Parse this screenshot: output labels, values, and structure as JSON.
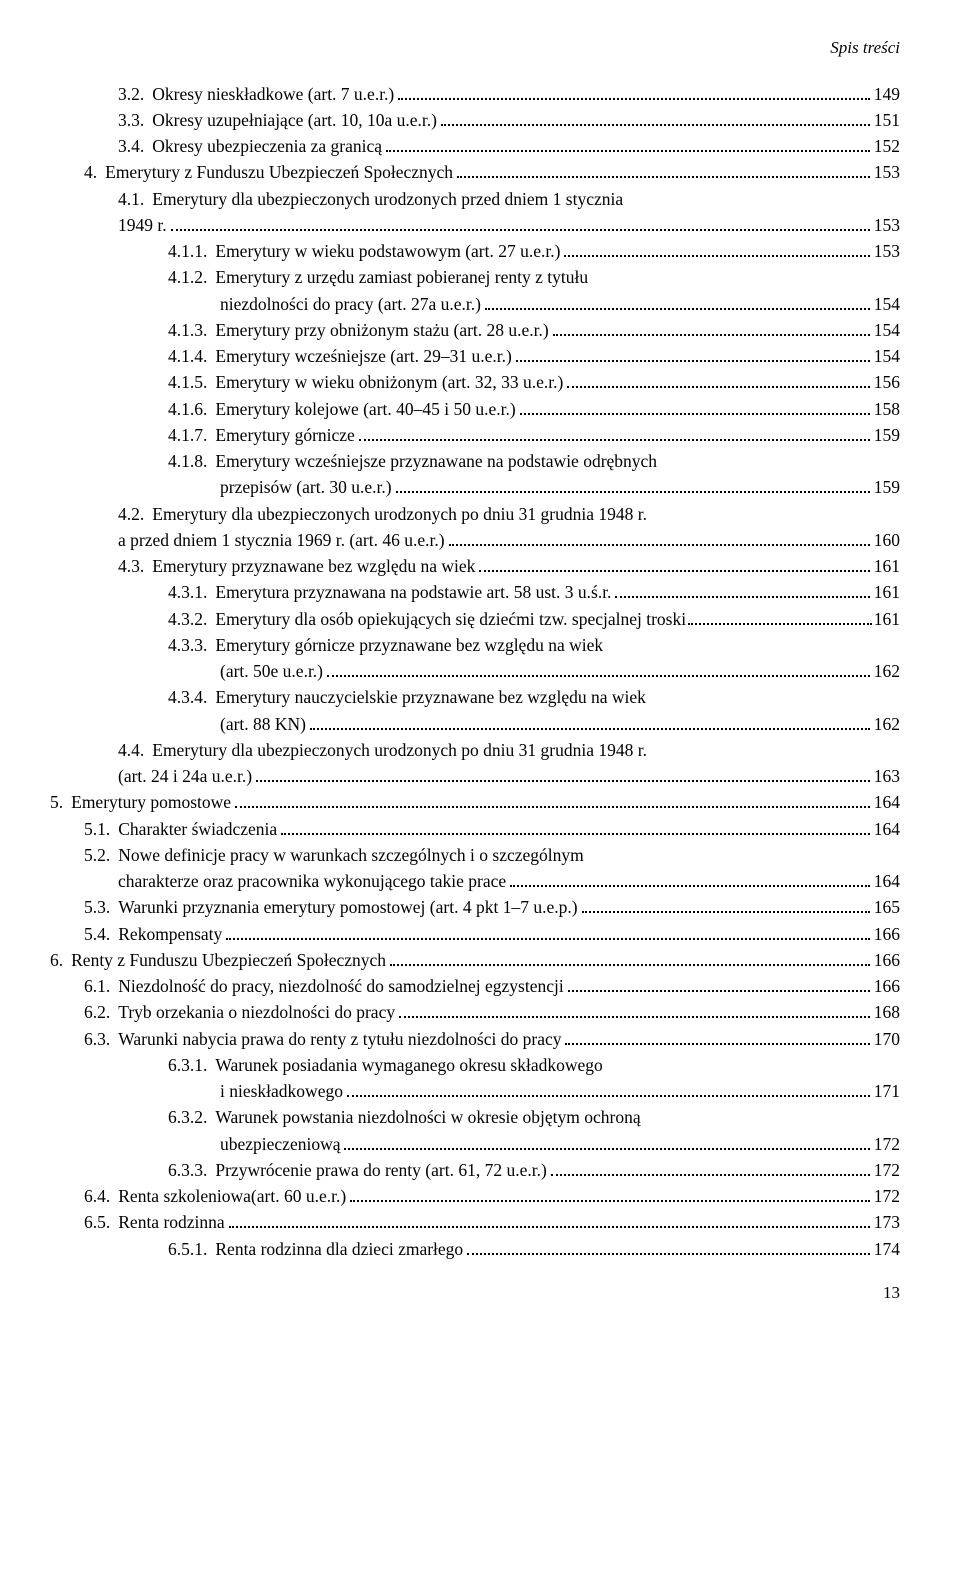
{
  "header": "Spis treści",
  "footer_page": "13",
  "entries": [
    {
      "indent": 2,
      "num": "3.2.",
      "label": "Okresy nieskładkowe (art. 7 u.e.r.)",
      "page": "149"
    },
    {
      "indent": 2,
      "num": "3.3.",
      "label": "Okresy uzupełniające (art. 10, 10a u.e.r.)",
      "page": "151"
    },
    {
      "indent": 2,
      "num": "3.4.",
      "label": "Okresy ubezpieczenia za granicą",
      "page": "152"
    },
    {
      "indent": 1,
      "num": "4.",
      "label": "Emerytury z Funduszu Ubezpieczeń Społecznych",
      "page": "153"
    },
    {
      "indent": 2,
      "num": "4.1.",
      "label": "Emerytury dla ubezpieczonych urodzonych przed dniem 1 stycznia",
      "cont": [
        {
          "label": "1949 r.",
          "page": "153"
        }
      ]
    },
    {
      "indent": 3,
      "num": "4.1.1.",
      "label": "Emerytury w wieku podstawowym (art. 27 u.e.r.)",
      "page": "153"
    },
    {
      "indent": 3,
      "num": "4.1.2.",
      "label": "Emerytury z urzędu zamiast pobieranej renty z tytułu",
      "cont": [
        {
          "label": "niezdolności do pracy (art. 27a u.e.r.)",
          "page": "154"
        }
      ]
    },
    {
      "indent": 3,
      "num": "4.1.3.",
      "label": "Emerytury przy obniżonym stażu (art. 28 u.e.r.)",
      "page": "154"
    },
    {
      "indent": 3,
      "num": "4.1.4.",
      "label": "Emerytury wcześniejsze (art. 29–31 u.e.r.)",
      "page": "154"
    },
    {
      "indent": 3,
      "num": "4.1.5.",
      "label": "Emerytury w wieku obniżonym (art. 32, 33 u.e.r.)",
      "page": "156"
    },
    {
      "indent": 3,
      "num": "4.1.6.",
      "label": "Emerytury kolejowe (art. 40–45 i 50 u.e.r.)",
      "page": "158"
    },
    {
      "indent": 3,
      "num": "4.1.7.",
      "label": "Emerytury górnicze",
      "page": "159"
    },
    {
      "indent": 3,
      "num": "4.1.8.",
      "label": "Emerytury wcześniejsze przyznawane na podstawie odrębnych",
      "cont": [
        {
          "label": "przepisów (art. 30 u.e.r.)",
          "page": "159"
        }
      ]
    },
    {
      "indent": 2,
      "num": "4.2.",
      "label": "Emerytury dla ubezpieczonych urodzonych po dniu 31 grudnia 1948 r.",
      "cont": [
        {
          "label": "a przed dniem 1 stycznia 1969 r. (art. 46 u.e.r.)",
          "page": "160"
        }
      ]
    },
    {
      "indent": 2,
      "num": "4.3.",
      "label": "Emerytury przyznawane bez względu na wiek",
      "page": "161"
    },
    {
      "indent": 3,
      "num": "4.3.1.",
      "label": "Emerytura przyznawana na podstawie art. 58 ust. 3 u.ś.r.",
      "page": "161"
    },
    {
      "indent": 3,
      "num": "4.3.2.",
      "label": "Emerytury dla osób opiekujących się dziećmi tzw. specjalnej troski",
      "page": "161",
      "tight": true
    },
    {
      "indent": 3,
      "num": "4.3.3.",
      "label": "Emerytury górnicze przyznawane bez względu na wiek",
      "cont": [
        {
          "label": "(art. 50e u.e.r.)",
          "page": "162"
        }
      ]
    },
    {
      "indent": 3,
      "num": "4.3.4.",
      "label": "Emerytury nauczycielskie przyznawane bez względu na wiek",
      "cont": [
        {
          "label": "(art. 88 KN)",
          "page": "162"
        }
      ]
    },
    {
      "indent": 2,
      "num": "4.4.",
      "label": "Emerytury dla ubezpieczonych urodzonych po dniu 31 grudnia 1948 r.",
      "cont": [
        {
          "label": "(art. 24 i 24a u.e.r.)",
          "page": "163"
        }
      ]
    },
    {
      "indent": 0,
      "num": "5.",
      "label": "Emerytury pomostowe",
      "page": "164"
    },
    {
      "indent": 1,
      "num": "5.1.",
      "label": "Charakter świadczenia",
      "page": "164"
    },
    {
      "indent": 1,
      "num": "5.2.",
      "label": "Nowe definicje pracy w warunkach szczególnych i o szczególnym",
      "cont": [
        {
          "label": "charakterze oraz pracownika wykonującego takie prace",
          "page": "164"
        }
      ]
    },
    {
      "indent": 1,
      "num": "5.3.",
      "label": "Warunki przyznania emerytury pomostowej (art. 4 pkt 1–7 u.e.p.)",
      "page": "165"
    },
    {
      "indent": 1,
      "num": "5.4.",
      "label": "Rekompensaty",
      "page": "166"
    },
    {
      "indent": 0,
      "num": "6.",
      "label": "Renty z Funduszu Ubezpieczeń Społecznych",
      "page": "166"
    },
    {
      "indent": 1,
      "num": "6.1.",
      "label": "Niezdolność do pracy, niezdolność do samodzielnej egzystencji",
      "page": "166"
    },
    {
      "indent": 1,
      "num": "6.2.",
      "label": "Tryb orzekania o niezdolności do pracy",
      "page": "168"
    },
    {
      "indent": 1,
      "num": "6.3.",
      "label": "Warunki nabycia prawa do renty z tytułu niezdolności do pracy",
      "page": "170"
    },
    {
      "indent": 3,
      "num": "6.3.1.",
      "label": "Warunek posiadania wymaganego okresu składkowego",
      "cont": [
        {
          "label": "i nieskładkowego",
          "page": "171"
        }
      ]
    },
    {
      "indent": 3,
      "num": "6.3.2.",
      "label": "Warunek powstania niezdolności w okresie objętym ochroną",
      "cont": [
        {
          "label": "ubezpieczeniową",
          "page": "172"
        }
      ]
    },
    {
      "indent": 3,
      "num": "6.3.3.",
      "label": "Przywrócenie prawa do renty (art. 61, 72 u.e.r.)",
      "page": "172"
    },
    {
      "indent": 1,
      "num": "6.4.",
      "label": "Renta szkoleniowa(art. 60 u.e.r.)",
      "page": "172"
    },
    {
      "indent": 1,
      "num": "6.5.",
      "label": "Renta rodzinna",
      "page": "173"
    },
    {
      "indent": 3,
      "num": "6.5.1.",
      "label": "Renta rodzinna dla dzieci zmarłego",
      "page": "174"
    }
  ]
}
